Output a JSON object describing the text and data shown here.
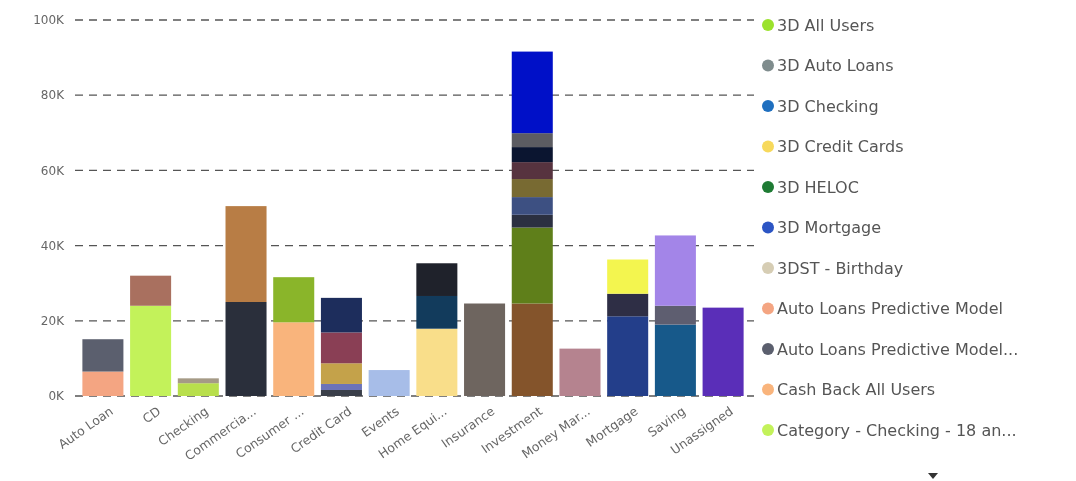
{
  "chart_data": {
    "type": "bar",
    "stacked": true,
    "categories": [
      "Auto Loan",
      "CD",
      "Checking",
      "Commercia...",
      "Consumer ...",
      "Credit Card",
      "Events",
      "Home Equi...",
      "Insurance",
      "Investment",
      "Money Mar...",
      "Mortgage",
      "Saving",
      "Unassigned"
    ],
    "ylim": [
      0,
      100000
    ],
    "yticks": [
      {
        "value": 0,
        "label": "0K"
      },
      {
        "value": 20000,
        "label": "20K"
      },
      {
        "value": 40000,
        "label": "40K"
      },
      {
        "value": 60000,
        "label": "60K"
      },
      {
        "value": 80000,
        "label": "80K"
      },
      {
        "value": 100000,
        "label": "100K"
      }
    ],
    "grid": "y",
    "legend": "right",
    "series": [
      {
        "name": "3D All Users",
        "color": "#9be22d",
        "values": [
          null,
          null,
          null,
          null,
          null,
          null,
          null,
          null,
          null,
          null,
          null,
          null,
          null,
          null
        ]
      },
      {
        "name": "3D Auto Loans",
        "color": "#7f8c8d",
        "values": [
          null,
          null,
          null,
          null,
          null,
          null,
          null,
          null,
          null,
          null,
          null,
          null,
          null,
          null
        ]
      },
      {
        "name": "3D Checking",
        "color": "#1f6fbf",
        "values": [
          null,
          null,
          null,
          null,
          null,
          null,
          null,
          null,
          null,
          null,
          null,
          null,
          null,
          null
        ]
      },
      {
        "name": "3D Credit Cards",
        "color": "#f7d95c",
        "values": [
          null,
          null,
          null,
          null,
          null,
          null,
          null,
          null,
          null,
          null,
          null,
          null,
          null,
          null
        ]
      },
      {
        "name": "3D HELOC",
        "color": "#1e7b34",
        "values": [
          null,
          null,
          null,
          null,
          null,
          null,
          null,
          null,
          null,
          null,
          null,
          null,
          null,
          null
        ]
      },
      {
        "name": "3D Mortgage",
        "color": "#2c55c4",
        "values": [
          null,
          null,
          null,
          null,
          null,
          null,
          null,
          null,
          null,
          null,
          null,
          null,
          null,
          null
        ]
      },
      {
        "name": "3DST - Birthday",
        "color": "#d6cdb4",
        "values": [
          null,
          null,
          null,
          null,
          null,
          null,
          null,
          null,
          null,
          null,
          null,
          null,
          null,
          null
        ]
      },
      {
        "name": "Auto Loans Predictive Model",
        "color": "#f4a582",
        "values": [
          6500,
          null,
          null,
          null,
          null,
          null,
          null,
          null,
          null,
          null,
          null,
          null,
          null,
          null
        ]
      },
      {
        "name": "Auto Loans Predictive Model...",
        "color": "#5b5f6e",
        "values": [
          8600,
          null,
          null,
          null,
          null,
          null,
          null,
          null,
          null,
          null,
          null,
          null,
          null,
          null
        ]
      },
      {
        "name": "Cash Back All Users",
        "color": "#f9b47c",
        "values": [
          null,
          null,
          null,
          null,
          19600,
          null,
          null,
          null,
          null,
          null,
          null,
          null,
          null,
          null
        ]
      },
      {
        "name": "Category - Checking - 18 an...",
        "color": "#c3f25a",
        "values": [
          null,
          24000,
          null,
          null,
          null,
          null,
          null,
          null,
          null,
          null,
          null,
          null,
          null,
          null
        ]
      },
      {
        "values": [
          null,
          null,
          3400,
          25000,
          null,
          1600,
          6900,
          17900,
          24600,
          24600,
          12600,
          21200,
          19000,
          23500
        ],
        "colors": [
          null,
          null,
          "#b8df4c",
          "#2a2f3b",
          null,
          "#3a3f4a",
          "#a7bde8",
          "#f9de8a",
          "#6e655f",
          "#84542b",
          "#b5838f",
          "#233e8a",
          "#17598a",
          "#5a2eb8"
        ]
      },
      {
        "values": [
          null,
          8000,
          1300,
          25500,
          12000,
          1600,
          null,
          8700,
          null,
          20200,
          null,
          6000,
          5000,
          null
        ],
        "colors": [
          null,
          "#a9705f",
          "#a59a86",
          "#b87d45",
          "#8ab52a",
          "#6c73b8",
          null,
          "#123b5c",
          null,
          "#5f7f1a",
          null,
          "#2e2e45",
          "#5e5e70",
          null
        ]
      },
      {
        "values": [
          null,
          null,
          null,
          null,
          null,
          5500,
          null,
          8700,
          null,
          3400,
          null,
          9100,
          18700,
          null
        ],
        "colors": [
          null,
          null,
          null,
          null,
          null,
          "#c4a24a",
          null,
          "#1f222b",
          null,
          "#2b3041",
          null,
          "#f3f54f",
          "#a385e8",
          null
        ]
      },
      {
        "values": [
          null,
          null,
          null,
          null,
          null,
          8200,
          null,
          null,
          null,
          4700,
          null,
          null,
          null,
          null
        ],
        "colors": [
          null,
          null,
          null,
          null,
          null,
          "#8a3f55",
          null,
          null,
          null,
          "#3d5082",
          null,
          null,
          null,
          null
        ]
      },
      {
        "values": [
          null,
          null,
          null,
          null,
          null,
          9200,
          null,
          null,
          null,
          4800,
          null,
          null,
          null,
          null
        ],
        "colors": [
          null,
          null,
          null,
          null,
          null,
          "#1d2d5c",
          null,
          null,
          null,
          "#786a32",
          null,
          null,
          null,
          null
        ]
      },
      {
        "values": [
          null,
          null,
          null,
          null,
          null,
          null,
          null,
          null,
          null,
          4500,
          null,
          null,
          null,
          null
        ],
        "colors": [
          null,
          null,
          null,
          null,
          null,
          null,
          null,
          null,
          null,
          "#57333f",
          null,
          null,
          null,
          null
        ]
      },
      {
        "values": [
          null,
          null,
          null,
          null,
          null,
          null,
          null,
          null,
          null,
          4000,
          null,
          null,
          null,
          null
        ],
        "colors": [
          null,
          null,
          null,
          null,
          null,
          null,
          null,
          null,
          null,
          "#0b1530",
          null,
          null,
          null,
          null
        ]
      },
      {
        "values": [
          null,
          null,
          null,
          null,
          null,
          null,
          null,
          null,
          null,
          3700,
          null,
          null,
          null,
          null
        ],
        "colors": [
          null,
          null,
          null,
          null,
          null,
          null,
          null,
          null,
          null,
          "#5c5c62",
          null,
          null,
          null,
          null
        ]
      },
      {
        "values": [
          null,
          null,
          null,
          null,
          null,
          null,
          null,
          null,
          null,
          21700,
          null,
          null,
          null,
          null
        ],
        "colors": [
          null,
          null,
          null,
          null,
          null,
          null,
          null,
          null,
          null,
          "#0010c8",
          null,
          null,
          null,
          null
        ]
      }
    ]
  }
}
